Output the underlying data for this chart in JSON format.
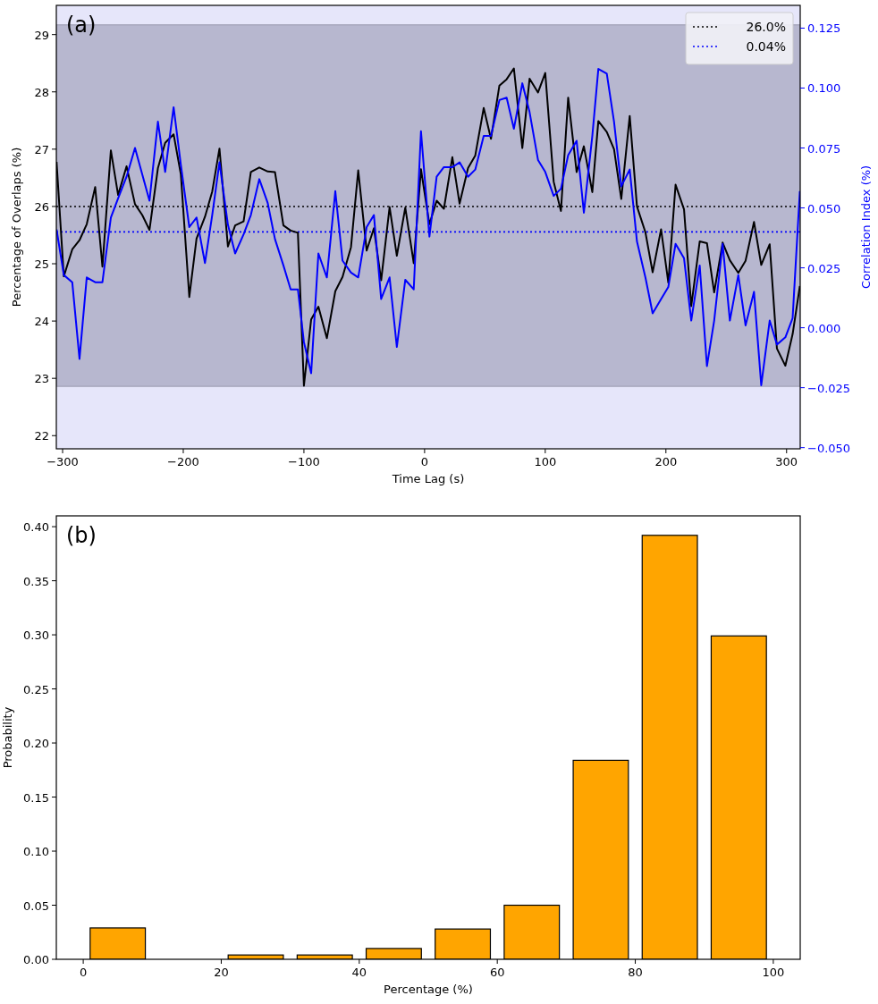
{
  "chart_data": [
    {
      "type": "line",
      "annotations": [
        "(a)"
      ],
      "xlabel": "Time Lag (s)",
      "ylabel": "Percentage of Overlaps (%)",
      "y2label": "Correlation Index (%)",
      "xlim": [
        -305.2,
        311.3
      ],
      "xticks": [
        {
          "value": -300,
          "label": "−300"
        },
        {
          "value": -200,
          "label": "−200"
        },
        {
          "value": -100,
          "label": "−100"
        },
        0,
        100,
        200,
        300
      ],
      "ylim": [
        21.77,
        29.51
      ],
      "yticks": [
        22,
        23,
        24,
        25,
        26,
        27,
        28,
        29
      ],
      "y2lim": [
        -0.0505,
        0.1345
      ],
      "y2ticks": [
        {
          "value": -0.05,
          "label": "−0.050"
        },
        {
          "value": -0.025,
          "label": "−0.025"
        },
        {
          "value": 0,
          "label": "0.000"
        },
        {
          "value": 0.025,
          "label": "0.025"
        },
        {
          "value": 0.05,
          "label": "0.050"
        },
        {
          "value": 0.075,
          "label": "0.075"
        },
        {
          "value": 0.1,
          "label": "0.100"
        },
        {
          "value": 0.125,
          "label": "0.125"
        }
      ],
      "x": [
        -305,
        -299,
        -292,
        -286,
        -280,
        -273,
        -267,
        -260,
        -254,
        -247,
        -240,
        -234,
        -228,
        -221,
        -215,
        -208,
        -202,
        -195,
        -189,
        -182,
        -176,
        -170,
        -163,
        -157,
        -150,
        -144,
        -137,
        -130,
        -124,
        -117,
        -111,
        -105,
        -100,
        -94,
        -88,
        -81,
        -74,
        -68,
        -61,
        -55,
        -48,
        -42,
        -36,
        -29,
        -23,
        -16,
        -9,
        -3,
        4,
        10,
        16,
        23,
        29,
        36,
        42,
        49,
        55,
        62,
        68,
        74,
        81,
        87,
        94,
        100,
        107,
        113,
        119,
        126,
        132,
        139,
        144,
        151,
        157,
        163,
        170,
        176,
        183,
        189,
        196,
        202,
        208,
        215,
        221,
        228,
        234,
        240,
        247,
        253,
        260,
        266,
        273,
        279,
        286,
        292,
        299,
        305,
        311
      ],
      "series": [
        {
          "color": "#000000",
          "values": [
            26.78,
            24.78,
            25.25,
            25.41,
            25.69,
            26.34,
            24.95,
            26.98,
            26.2,
            26.7,
            26.04,
            25.85,
            25.59,
            26.67,
            27.11,
            27.26,
            26.56,
            24.42,
            25.44,
            25.82,
            26.26,
            27.01,
            25.3,
            25.67,
            25.74,
            26.6,
            26.68,
            26.61,
            26.6,
            25.67,
            25.58,
            25.54,
            22.87,
            24.03,
            24.25,
            23.7,
            24.52,
            24.77,
            25.29,
            26.63,
            25.23,
            25.62,
            24.71,
            25.99,
            25.14,
            25.98,
            25.01,
            26.65,
            25.69,
            26.1,
            25.96,
            26.86,
            26.05,
            26.67,
            26.89,
            27.72,
            27.18,
            28.11,
            28.22,
            28.41,
            27.02,
            28.23,
            27.99,
            28.33,
            26.43,
            25.92,
            27.9,
            26.6,
            27.05,
            26.25,
            27.49,
            27.3,
            27.0,
            26.13,
            27.58,
            26.0,
            25.55,
            24.85,
            25.6,
            24.67,
            26.38,
            25.95,
            24.26,
            25.39,
            25.36,
            24.5,
            25.37,
            25.06,
            24.84,
            25.05,
            25.73,
            24.98,
            25.34,
            23.52,
            23.22,
            23.77,
            24.61
          ]
        },
        {
          "color": "#0000ff",
          "axis": "y2",
          "values": [
            0.041,
            0.022,
            0.019,
            -0.013,
            0.021,
            0.019,
            0.019,
            0.046,
            0.054,
            0.063,
            0.075,
            0.064,
            0.053,
            0.086,
            0.065,
            0.092,
            0.068,
            0.042,
            0.046,
            0.027,
            0.047,
            0.069,
            0.043,
            0.031,
            0.039,
            0.047,
            0.062,
            0.052,
            0.037,
            0.026,
            0.016,
            0.016,
            -0.006,
            -0.019,
            0.031,
            0.021,
            0.057,
            0.028,
            0.023,
            0.021,
            0.042,
            0.047,
            0.012,
            0.021,
            -0.008,
            0.02,
            0.016,
            0.082,
            0.038,
            0.063,
            0.067,
            0.067,
            0.069,
            0.063,
            0.066,
            0.08,
            0.08,
            0.095,
            0.096,
            0.083,
            0.102,
            0.09,
            0.07,
            0.065,
            0.055,
            0.058,
            0.072,
            0.078,
            0.048,
            0.08,
            0.108,
            0.106,
            0.086,
            0.059,
            0.066,
            0.036,
            0.021,
            0.006,
            0.012,
            0.017,
            0.035,
            0.029,
            0.003,
            0.026,
            -0.016,
            0.003,
            0.035,
            0.003,
            0.022,
            0.001,
            0.015,
            -0.024,
            0.003,
            -0.007,
            -0.004,
            0.004,
            0.057
          ]
        }
      ],
      "bands": [
        {
          "axis": "y",
          "from": 22.86,
          "to": 29.17,
          "color": "#b7b7cf"
        }
      ],
      "ref_lines": [
        {
          "axis": "y",
          "value": 26,
          "label": "26.0%",
          "color": "#000000",
          "line_style": "dotted"
        },
        {
          "axis": "y2",
          "value": 0.04,
          "label": "0.04%",
          "color": "#0000ff",
          "line_style": "dotted"
        }
      ],
      "legend": "top right"
    },
    {
      "type": "bar",
      "annotations": [
        "(b)"
      ],
      "xlabel": "Percentage (%)",
      "ylabel": "Probability",
      "x": [
        5,
        15,
        25,
        35,
        45,
        55,
        65,
        75,
        85,
        95
      ],
      "values": [
        0.029,
        0,
        0.004,
        0.004,
        0.01,
        0.028,
        0.05,
        0.184,
        0.392,
        0.299
      ],
      "color": "#ffa500",
      "xlim": [
        -3.9,
        103.9
      ],
      "xticks": [
        0,
        20,
        40,
        60,
        80,
        100
      ],
      "ylim": [
        0,
        0.41
      ],
      "yticks": [
        {
          "value": 0,
          "label": "0.00"
        },
        {
          "value": 0.05,
          "label": "0.05"
        },
        {
          "value": 0.1,
          "label": "0.10"
        },
        {
          "value": 0.15,
          "label": "0.15"
        },
        {
          "value": 0.2,
          "label": "0.20"
        },
        {
          "value": 0.25,
          "label": "0.25"
        },
        {
          "value": 0.3,
          "label": "0.30"
        },
        {
          "value": 0.35,
          "label": "0.35"
        },
        {
          "value": 0.4,
          "label": "0.40"
        }
      ]
    }
  ]
}
